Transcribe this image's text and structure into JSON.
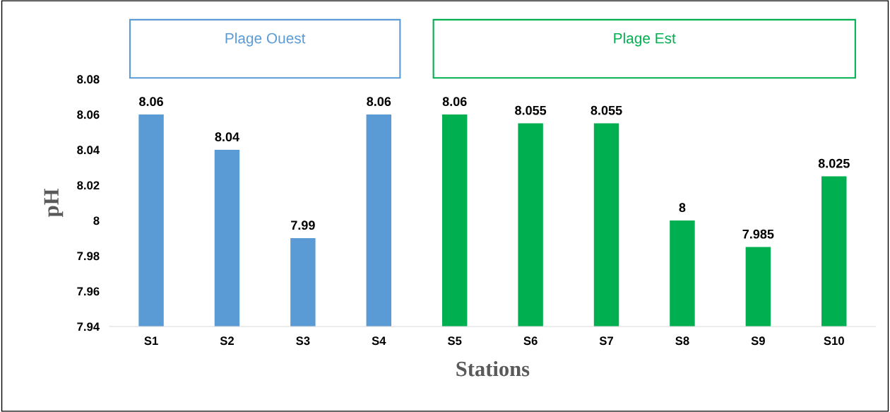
{
  "chart_data": {
    "type": "bar",
    "xlabel": "Stations",
    "ylabel": "pH",
    "categories": [
      "S1",
      "S2",
      "S3",
      "S4",
      "S5",
      "S6",
      "S7",
      "S8",
      "S9",
      "S10"
    ],
    "series": [
      {
        "name": "Plage Ouest",
        "color": "#5b9bd5",
        "values": [
          8.06,
          8.04,
          7.99,
          8.06,
          null,
          null,
          null,
          null,
          null,
          null
        ]
      },
      {
        "name": "Plage Est",
        "color": "#00b050",
        "values": [
          null,
          null,
          null,
          null,
          8.06,
          8.055,
          8.055,
          8,
          7.985,
          8.025
        ]
      }
    ],
    "ylim": [
      7.94,
      8.08
    ],
    "yticks": [
      7.94,
      7.96,
      7.98,
      8,
      8.02,
      8.04,
      8.06,
      8.08
    ],
    "data_labels": true,
    "grid": false,
    "legend": false
  }
}
